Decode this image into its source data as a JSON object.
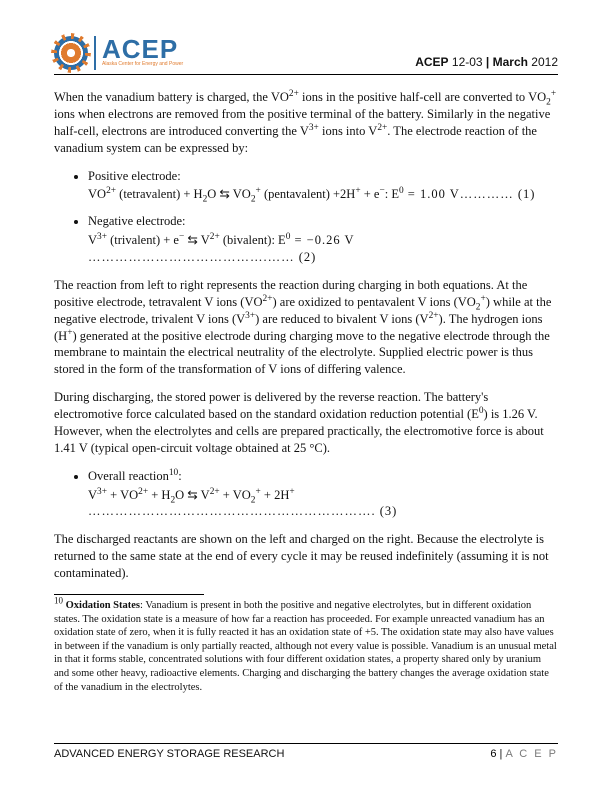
{
  "header": {
    "logo_text": "ACEP",
    "logo_sub": "Alaska Center for Energy and Power",
    "doc_code_bold": "ACEP",
    "doc_code_rest": " 12-03 ",
    "sep": "|",
    "month": " March ",
    "year": "2012"
  },
  "body": {
    "p1_a": "When the vanadium battery is charged, the VO",
    "p1_b": " ions in the positive half-cell are converted to VO",
    "p1_c": " ions when electrons are removed from the positive terminal of the battery. Similarly in the negative half-cell, electrons are introduced converting the V",
    "p1_d": " ions into V",
    "p1_e": ". The electrode reaction of the vanadium system can be expressed by:",
    "li1_label": "Positive electrode:",
    "li1_eq_a": "VO",
    "li1_eq_b": " (tetravalent) + H",
    "li1_eq_c": "O ⇆ VO",
    "li1_eq_d": " (pentavalent) +2H",
    "li1_eq_e": " + e",
    "li1_eq_f": ": E",
    "li1_eq_g": " = 1.00 V………… (1)",
    "li2_label": "Negative electrode:",
    "li2_eq_a": "V",
    "li2_eq_b": " (trivalent) + e",
    "li2_eq_c": " ⇆ V",
    "li2_eq_d": " (bivalent): E",
    "li2_eq_e": " = −0.26 V ………………………………….…… (2)",
    "p2_a": "The reaction from left to right represents the reaction during charging in both equations. At the positive electrode, tetravalent V ions (VO",
    "p2_b": ") are oxidized to pentavalent V ions (VO",
    "p2_c": ") while at the negative electrode, trivalent V ions (V",
    "p2_d": ") are reduced to bivalent V ions (V",
    "p2_e": "). The hydrogen ions (H",
    "p2_f": ") generated at the positive electrode during charging move to the negative electrode through the membrane to maintain the electrical neutrality of the electrolyte. Supplied electric power is thus stored in the form of the transformation of V ions of differing valence.",
    "p3_a": "During discharging, the stored power is delivered by the reverse reaction. The battery's electromotive force calculated based on the standard oxidation reduction potential (E",
    "p3_b": ") is 1.26 V. However, when the electrolytes and cells are prepared practically, the electromotive force is about 1.41 V (typical open-circuit voltage obtained at 25 °C).",
    "li3_label_a": "Overall reaction",
    "li3_label_b": ":",
    "li3_eq_a": "V",
    "li3_eq_b": " + VO",
    "li3_eq_c": " + H",
    "li3_eq_d": "O ⇆ V",
    "li3_eq_e": " + VO",
    "li3_eq_f": " + 2H",
    "li3_eq_g": " ………………………………………………………. (3)",
    "p4": "The discharged reactants are shown on the left and charged on the right. Because the electrolyte is returned to the same state at the end of every cycle it may be reused indefinitely (assuming it is not contaminated)."
  },
  "footnote": {
    "mark": "10",
    "bold": " Oxidation States",
    "text": ": Vanadium is present in both the positive and negative electrolytes, but in different oxidation states. The oxidation state is a measure of how far a reaction has proceeded. For example unreacted vanadium has an oxidation state of zero, when it is fully reacted it has an oxidation state of +5. The oxidation state may also have values in between if the vanadium is only partially reacted, although not every value is possible. Vanadium is an unusual metal in that it forms stable, concentrated solutions with four different oxidation states, a property shared only by uranium and some other heavy, radioactive elements. Charging and discharging the battery changes the average oxidation state of the vanadium in the electrolytes."
  },
  "footer": {
    "left": "ADVANCED ENERGY STORAGE RESEARCH",
    "page_num": "6",
    "sep": " | ",
    "org": "A C E P"
  },
  "sup": {
    "two_plus": "2+",
    "three_plus": "3+",
    "plus": "+",
    "minus": "−",
    "zero": "0",
    "ten": "10"
  },
  "sub": {
    "two": "2"
  }
}
